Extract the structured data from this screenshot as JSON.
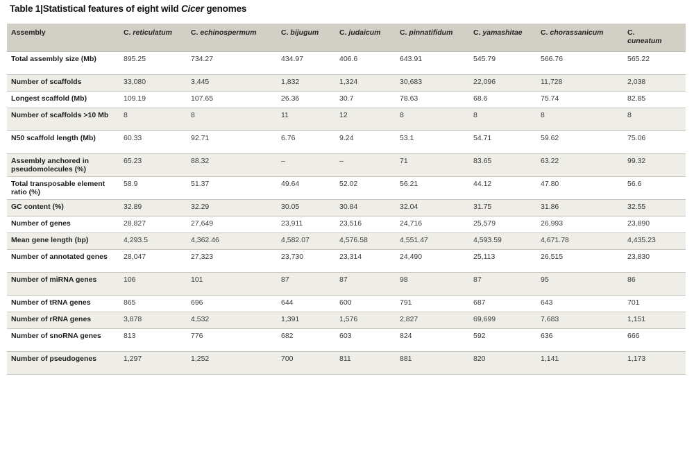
{
  "caption": {
    "label": "Table 1",
    "separator": "|",
    "title_prefix": "Statistical features of eight wild ",
    "title_italic": "Cicer",
    "title_suffix": " genomes"
  },
  "header": {
    "first": "Assembly",
    "species": [
      {
        "genus": "C.",
        "epithet": "reticulatum"
      },
      {
        "genus": "C.",
        "epithet": "echinospermum"
      },
      {
        "genus": "C.",
        "epithet": "bijugum"
      },
      {
        "genus": "C.",
        "epithet": "judaicum"
      },
      {
        "genus": "C.",
        "epithet": "pinnatifidum"
      },
      {
        "genus": "C.",
        "epithet": "yamashitae"
      },
      {
        "genus": "C.",
        "epithet": "chorassanicum"
      },
      {
        "genus": "C.",
        "epithet": "cuneatum"
      }
    ]
  },
  "rows": [
    {
      "label": "Total assembly size (Mb)",
      "values": [
        "895.25",
        "734.27",
        "434.97",
        "406.6",
        "643.91",
        "545.79",
        "566.76",
        "565.22"
      ]
    },
    {
      "label": "Number of scaffolds",
      "values": [
        "33,080",
        "3,445",
        "1,832",
        "1,324",
        "30,683",
        "22,096",
        "11,728",
        "2,038"
      ]
    },
    {
      "label": "Longest scaffold (Mb)",
      "values": [
        "109.19",
        "107.65",
        "26.36",
        "30.7",
        "78.63",
        "68.6",
        "75.74",
        "82.85"
      ]
    },
    {
      "label": "Number of scaffolds >10 Mb",
      "values": [
        "8",
        "8",
        "11",
        "12",
        "8",
        "8",
        "8",
        "8"
      ]
    },
    {
      "label": "N50 scaffold length (Mb)",
      "values": [
        "60.33",
        "92.71",
        "6.76",
        "9.24",
        "53.1",
        "54.71",
        "59.62",
        "75.06"
      ]
    },
    {
      "label": "Assembly anchored in pseudomolecules (%)",
      "values": [
        "65.23",
        "88.32",
        "–",
        "–",
        "71",
        "83.65",
        "63.22",
        "99.32"
      ]
    },
    {
      "label": "Total transposable element ratio (%)",
      "values": [
        "58.9",
        "51.37",
        "49.64",
        "52.02",
        "56.21",
        "44.12",
        "47.80",
        "56.6"
      ]
    },
    {
      "label": "GC content (%)",
      "values": [
        "32.89",
        "32.29",
        "30.05",
        "30.84",
        "32.04",
        "31.75",
        "31.86",
        "32.55"
      ]
    },
    {
      "label": "Number of genes",
      "values": [
        "28,827",
        "27,649",
        "23,911",
        "23,516",
        "24,716",
        "25,579",
        "26,993",
        "23,890"
      ]
    },
    {
      "label": "Mean gene length (bp)",
      "values": [
        "4,293.5",
        "4,362.46",
        "4,582.07",
        "4,576.58",
        "4,551.47",
        "4,593.59",
        "4,671.78",
        "4,435.23"
      ]
    },
    {
      "label": "Number of annotated genes",
      "values": [
        "28,047",
        "27,323",
        "23,730",
        "23,314",
        "24,490",
        "25,113",
        "26,515",
        "23,830"
      ]
    },
    {
      "label": "Number of miRNA genes",
      "values": [
        "106",
        "101",
        "87",
        "87",
        "98",
        "87",
        "95",
        "86"
      ]
    },
    {
      "label": "Number of tRNA genes",
      "values": [
        "865",
        "696",
        "644",
        "600",
        "791",
        "687",
        "643",
        "701"
      ]
    },
    {
      "label": "Number of rRNA genes",
      "values": [
        "3,878",
        "4,532",
        "1,391",
        "1,576",
        "2,827",
        "69,699",
        "7,683",
        "1,151"
      ]
    },
    {
      "label": "Number of snoRNA genes",
      "values": [
        "813",
        "776",
        "682",
        "603",
        "824",
        "592",
        "636",
        "666"
      ]
    },
    {
      "label": "Number of pseudogenes",
      "values": [
        "1,297",
        "1,252",
        "700",
        "811",
        "881",
        "820",
        "1,141",
        "1,173"
      ]
    }
  ]
}
